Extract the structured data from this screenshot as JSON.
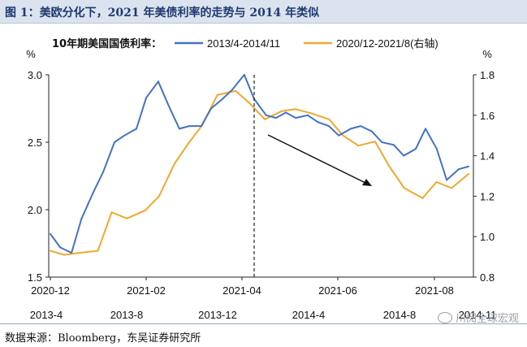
{
  "figure_title": "图 1：美欧分化下，2021 年美债利率的走势与 2014 年类似",
  "source": "数据来源：Bloomberg，东吴证券研究所",
  "watermark": "川阅全球宏观",
  "colors": {
    "series_2014": "#4472c4",
    "series_2021": "#f0a830",
    "title_bg": "#dbe3ef",
    "title_text": "#1f3a6e"
  },
  "chart_data": {
    "type": "line",
    "legend_title": "10年期美国国债利率：",
    "legend_position": "top",
    "left_axis": {
      "unit": "%",
      "ylim": [
        1.5,
        3.0
      ],
      "ticks": [
        "1.5",
        "2.0",
        "2.5",
        "3.0"
      ]
    },
    "right_axis": {
      "unit": "%",
      "ylim": [
        0.8,
        1.8
      ],
      "ticks": [
        "0.8",
        "1.0",
        "1.2",
        "1.4",
        "1.6",
        "1.8"
      ]
    },
    "x_axis_top_ticks": [
      "2020-12",
      "2021-02",
      "2021-04",
      "2021-06",
      "2021-08"
    ],
    "x_axis_bottom_ticks": [
      "2013-4",
      "2013-8",
      "2013-12",
      "2014-4",
      "2014-8",
      "2014-11"
    ],
    "grid": false,
    "annotations": {
      "dashed_vertical_at": "2021-04",
      "arrow": "downward trend"
    },
    "series": [
      {
        "name": "2013/4-2014/11",
        "axis": "left",
        "x": [
          "2013-04-01",
          "2013-04-15",
          "2013-05-01",
          "2013-05-15",
          "2013-06-01",
          "2013-06-15",
          "2013-07-01",
          "2013-07-15",
          "2013-08-01",
          "2013-08-15",
          "2013-09-01",
          "2013-09-15",
          "2013-10-01",
          "2013-10-15",
          "2013-11-01",
          "2013-11-15",
          "2013-12-01",
          "2013-12-15",
          "2014-01-01",
          "2014-01-15",
          "2014-02-01",
          "2014-02-15",
          "2014-03-01",
          "2014-03-15",
          "2014-04-01",
          "2014-04-15",
          "2014-05-01",
          "2014-05-15",
          "2014-06-01",
          "2014-06-15",
          "2014-07-01",
          "2014-07-15",
          "2014-08-01",
          "2014-08-15",
          "2014-09-01",
          "2014-09-15",
          "2014-10-01",
          "2014-10-15",
          "2014-11-01",
          "2014-11-15"
        ],
        "values": [
          1.82,
          1.72,
          1.68,
          1.93,
          2.13,
          2.28,
          2.5,
          2.55,
          2.6,
          2.83,
          2.95,
          2.78,
          2.6,
          2.62,
          2.62,
          2.75,
          2.82,
          2.89,
          3.0,
          2.82,
          2.7,
          2.68,
          2.72,
          2.68,
          2.7,
          2.65,
          2.62,
          2.55,
          2.6,
          2.62,
          2.58,
          2.5,
          2.48,
          2.4,
          2.45,
          2.6,
          2.45,
          2.22,
          2.3,
          2.32
        ]
      },
      {
        "name": "2020/12-2021/8(右轴)",
        "axis": "right",
        "x": [
          "2020-12-01",
          "2020-12-10",
          "2020-12-20",
          "2021-01-01",
          "2021-01-10",
          "2021-01-20",
          "2021-02-01",
          "2021-02-10",
          "2021-02-20",
          "2021-03-01",
          "2021-03-10",
          "2021-03-20",
          "2021-04-01",
          "2021-04-10",
          "2021-04-20",
          "2021-05-01",
          "2021-05-10",
          "2021-05-20",
          "2021-06-01",
          "2021-06-10",
          "2021-06-20",
          "2021-07-01",
          "2021-07-10",
          "2021-07-20",
          "2021-08-01",
          "2021-08-10",
          "2021-08-20",
          "2021-08-31"
        ],
        "values": [
          0.93,
          0.91,
          0.92,
          0.93,
          1.12,
          1.09,
          1.13,
          1.2,
          1.36,
          1.46,
          1.55,
          1.7,
          1.72,
          1.66,
          1.58,
          1.62,
          1.63,
          1.61,
          1.58,
          1.5,
          1.45,
          1.47,
          1.35,
          1.24,
          1.19,
          1.27,
          1.24,
          1.31
        ]
      }
    ]
  }
}
